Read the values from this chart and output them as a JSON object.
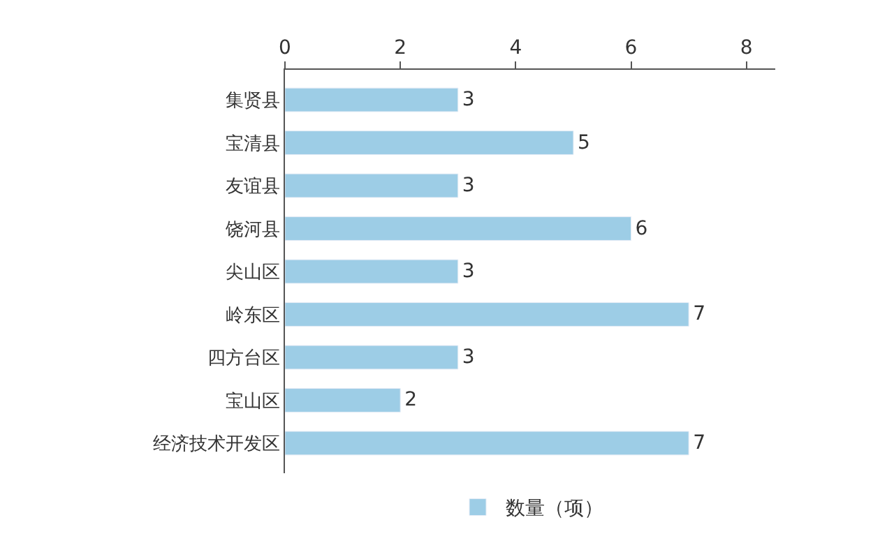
{
  "chart_data": {
    "type": "bar",
    "orientation": "horizontal",
    "categories": [
      "集贤县",
      "宝清县",
      "友谊县",
      "饶河县",
      "尖山区",
      "岭东区",
      "四方台区",
      "宝山区",
      "经济技术开发区"
    ],
    "series": [
      {
        "name": "数量（项）",
        "color": "#9dcde6",
        "values": [
          3,
          5,
          3,
          6,
          3,
          7,
          3,
          2,
          7
        ]
      }
    ],
    "xlim": [
      0,
      8.5
    ],
    "xticks": [
      0,
      2,
      4,
      6,
      8
    ],
    "data_labels": true,
    "legend": "bottom"
  }
}
